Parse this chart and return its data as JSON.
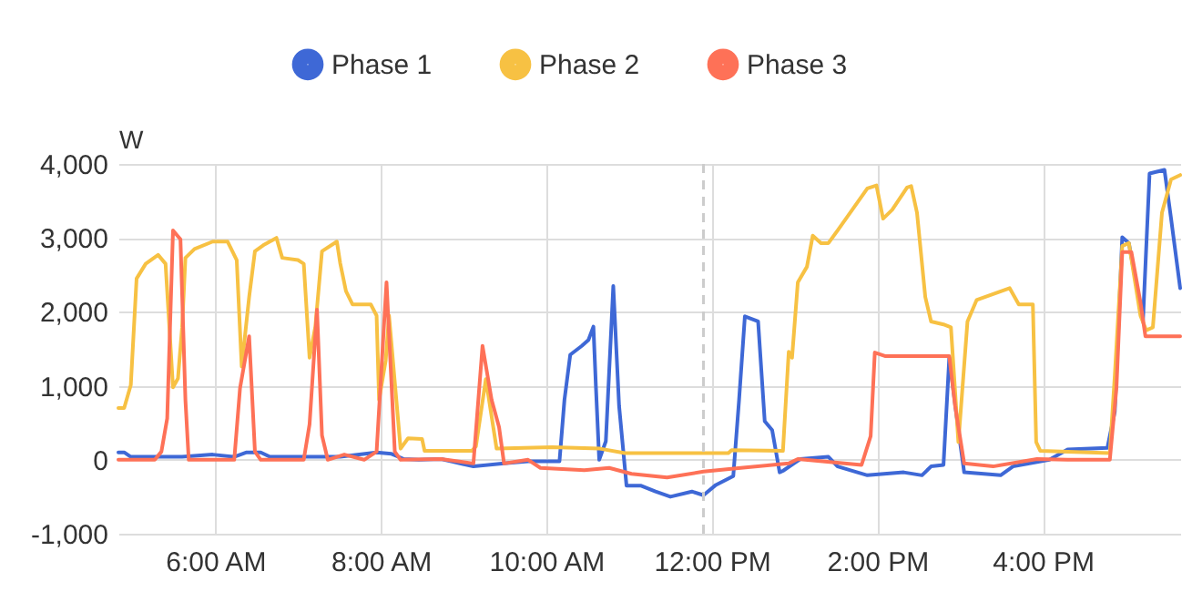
{
  "chart_data": {
    "type": "line",
    "ylabel": "W",
    "xlim": [
      4.83,
      17.66
    ],
    "xticks": [
      {
        "value": 6,
        "label": "6:00 AM"
      },
      {
        "value": 8,
        "label": "8:00 AM"
      },
      {
        "value": 10,
        "label": "10:00 AM"
      },
      {
        "value": 12,
        "label": "12:00 PM"
      },
      {
        "value": 14,
        "label": "2:00 PM"
      },
      {
        "value": 16,
        "label": "4:00 PM"
      }
    ],
    "ylim": [
      -1000,
      4000
    ],
    "yticks": [
      {
        "value": -1000,
        "label": "-1,000"
      },
      0,
      {
        "value": 1000,
        "label": "1,000"
      },
      {
        "value": 2000,
        "label": "2,000"
      },
      {
        "value": 3000,
        "label": "3,000"
      },
      {
        "value": 4000,
        "label": "4,000"
      }
    ],
    "grid": true,
    "legend": "top",
    "line_style": "solid",
    "ref_lines": [
      {
        "axis": "x",
        "value": 11.9,
        "label": null,
        "color": "#cccccc",
        "line_style": "dashed"
      }
    ],
    "series": [
      {
        "name": "Phase 1",
        "color": "#3e68d6",
        "x": [
          4.83,
          4.9,
          4.98,
          5.6,
          5.97,
          6.23,
          6.38,
          6.55,
          6.66,
          7.51,
          7.95,
          8.13,
          8.28,
          8.46,
          8.73,
          9.12,
          9.49,
          9.78,
          10.16,
          10.22,
          10.29,
          10.43,
          10.51,
          10.57,
          10.6,
          10.64,
          10.72,
          10.81,
          10.88,
          10.97,
          11.14,
          11.32,
          11.5,
          11.76,
          11.9,
          12.05,
          12.26,
          12.33,
          12.4,
          12.56,
          12.64,
          12.73,
          12.82,
          12.86,
          13.07,
          13.41,
          13.52,
          13.88,
          14.32,
          14.54,
          14.65,
          14.8,
          14.87,
          14.98,
          15.05,
          15.49,
          15.64,
          16.08,
          16.3,
          16.78,
          16.87,
          16.96,
          17.04,
          17.21,
          17.29,
          17.47,
          17.55,
          17.66
        ],
        "values": [
          100,
          100,
          40,
          40,
          70,
          40,
          100,
          100,
          40,
          40,
          100,
          80,
          10,
          0,
          10,
          -90,
          -50,
          -20,
          -20,
          810,
          1420,
          1540,
          1620,
          1800,
          990,
          0,
          250,
          2350,
          730,
          -350,
          -350,
          -430,
          -500,
          -430,
          -480,
          -340,
          -220,
          810,
          1940,
          1870,
          520,
          400,
          -170,
          -150,
          10,
          40,
          -90,
          -210,
          -170,
          -210,
          -90,
          -70,
          1380,
          400,
          -170,
          -210,
          -90,
          0,
          140,
          160,
          650,
          3010,
          2930,
          1870,
          3870,
          3920,
          3260,
          2320
        ]
      },
      {
        "name": "Phase 2",
        "color": "#f7c143",
        "x": [
          4.83,
          4.9,
          4.98,
          5.05,
          5.16,
          5.31,
          5.4,
          5.49,
          5.55,
          5.6,
          5.64,
          5.75,
          5.97,
          6.15,
          6.26,
          6.32,
          6.41,
          6.48,
          6.58,
          6.74,
          6.81,
          7.0,
          7.07,
          7.14,
          7.21,
          7.29,
          7.47,
          7.51,
          7.58,
          7.66,
          7.88,
          7.95,
          7.98,
          8.06,
          8.1,
          8.24,
          8.33,
          8.5,
          8.53,
          9.1,
          9.15,
          9.27,
          9.4,
          10.07,
          10.65,
          10.95,
          12.2,
          12.24,
          12.86,
          12.93,
          12.97,
          13.04,
          13.15,
          13.22,
          13.32,
          13.41,
          13.52,
          13.88,
          13.99,
          14.07,
          14.18,
          14.36,
          14.41,
          14.48,
          14.58,
          14.65,
          14.8,
          14.89,
          14.98,
          15.09,
          15.2,
          15.6,
          15.71,
          15.88,
          15.92,
          15.97,
          16.81,
          16.87,
          16.96,
          17.04,
          17.18,
          17.25,
          17.33,
          17.44,
          17.55,
          17.66
        ],
        "values": [
          700,
          700,
          1010,
          2450,
          2650,
          2770,
          2650,
          980,
          1100,
          1790,
          2730,
          2850,
          2950,
          2950,
          2700,
          1260,
          2200,
          2820,
          2900,
          3000,
          2730,
          2700,
          2650,
          1380,
          1800,
          2820,
          2950,
          2660,
          2280,
          2100,
          2100,
          1950,
          810,
          1340,
          1950,
          150,
          290,
          280,
          120,
          120,
          180,
          1090,
          150,
          170,
          150,
          90,
          90,
          130,
          120,
          1460,
          1380,
          2400,
          2610,
          3030,
          2930,
          2930,
          3100,
          3670,
          3710,
          3260,
          3380,
          3680,
          3700,
          3340,
          2200,
          1870,
          1830,
          1790,
          240,
          1870,
          2160,
          2320,
          2100,
          2100,
          240,
          120,
          90,
          1140,
          2890,
          2930,
          1950,
          1750,
          1790,
          3340,
          3790,
          3850
        ]
      },
      {
        "name": "Phase 3",
        "color": "#fe7157",
        "x": [
          4.83,
          5.27,
          5.35,
          5.42,
          5.49,
          5.58,
          5.64,
          5.68,
          6.23,
          6.3,
          6.41,
          6.48,
          6.55,
          7.07,
          7.14,
          7.23,
          7.29,
          7.36,
          7.56,
          7.8,
          7.95,
          8.07,
          8.17,
          8.24,
          8.73,
          9.12,
          9.23,
          9.34,
          9.43,
          9.49,
          9.78,
          9.93,
          10.46,
          10.76,
          11.03,
          11.46,
          11.9,
          12.35,
          12.93,
          13.04,
          13.81,
          13.92,
          13.97,
          14.1,
          14.87,
          14.94,
          15.05,
          15.4,
          15.93,
          16.3,
          16.81,
          16.89,
          16.96,
          17.07,
          17.18,
          17.24,
          17.66
        ],
        "values": [
          0,
          0,
          110,
          560,
          3100,
          2980,
          810,
          0,
          0,
          970,
          1670,
          110,
          0,
          0,
          480,
          2030,
          330,
          0,
          70,
          0,
          110,
          2400,
          110,
          0,
          10,
          -50,
          1540,
          810,
          440,
          -50,
          0,
          -110,
          -140,
          -110,
          -190,
          -240,
          -160,
          -110,
          -50,
          10,
          -70,
          320,
          1450,
          1400,
          1400,
          730,
          -50,
          -90,
          10,
          0,
          0,
          970,
          2810,
          2810,
          2130,
          1670,
          1670
        ]
      }
    ]
  }
}
